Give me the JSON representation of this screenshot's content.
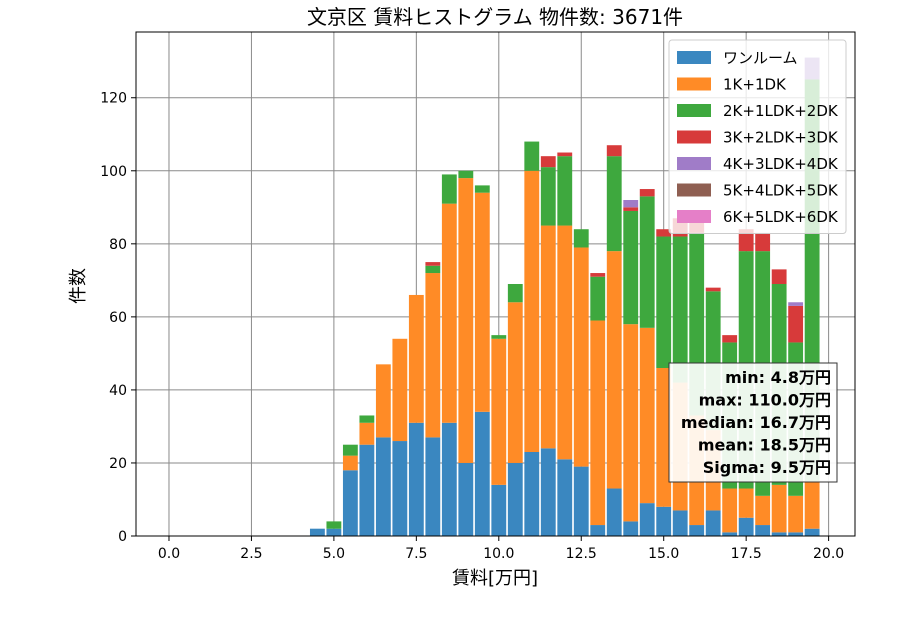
{
  "chart_data": {
    "type": "bar",
    "stacked": true,
    "title": "文京区 賃料ヒストグラム  物件数: 3671件",
    "xlabel": "賃料[万円]",
    "ylabel": "件数",
    "xlim": [
      -1,
      20.8
    ],
    "ylim": [
      0,
      138
    ],
    "bin_width": 0.5,
    "x": [
      4.5,
      5.0,
      5.5,
      6.0,
      6.5,
      7.0,
      7.5,
      8.0,
      8.5,
      9.0,
      9.5,
      10.0,
      10.5,
      11.0,
      11.5,
      12.0,
      12.5,
      13.0,
      13.5,
      14.0,
      14.5,
      15.0,
      15.5,
      16.0,
      16.5,
      17.0,
      17.5,
      18.0,
      18.5,
      19.0,
      19.5
    ],
    "xticks": [
      "0.0",
      "2.5",
      "5.0",
      "7.5",
      "10.0",
      "12.5",
      "15.0",
      "17.5",
      "20.0"
    ],
    "yticks": [
      "0",
      "20",
      "40",
      "60",
      "80",
      "100",
      "120"
    ],
    "grid": true,
    "legend_position": "top-right",
    "series": [
      {
        "name": "ワンルーム",
        "color": "#3a87c0",
        "values": [
          2,
          2,
          18,
          25,
          27,
          26,
          31,
          27,
          31,
          20,
          34,
          14,
          20,
          23,
          24,
          21,
          19,
          3,
          13,
          4,
          9,
          8,
          7,
          3,
          7,
          1,
          5,
          3,
          1,
          1,
          2
        ]
      },
      {
        "name": "1K+1DK",
        "color": "#ff8b26",
        "values": [
          0,
          0,
          4,
          6,
          20,
          28,
          35,
          45,
          60,
          78,
          60,
          40,
          44,
          77,
          61,
          64,
          60,
          56,
          65,
          54,
          48,
          38,
          35,
          30,
          22,
          12,
          8,
          8,
          13,
          10,
          13
        ]
      },
      {
        "name": "2K+1LDK+2DK",
        "color": "#3ea83e",
        "values": [
          0,
          2,
          3,
          2,
          0,
          0,
          0,
          2,
          8,
          2,
          2,
          1,
          5,
          8,
          16,
          19,
          5,
          12,
          26,
          31,
          36,
          36,
          40,
          50,
          38,
          40,
          65,
          67,
          55,
          42,
          110
        ]
      },
      {
        "name": "3K+2LDK+3DK",
        "color": "#d73a3a",
        "values": [
          0,
          0,
          0,
          0,
          0,
          0,
          0,
          1,
          0,
          0,
          0,
          0,
          0,
          0,
          3,
          1,
          0,
          1,
          3,
          1,
          2,
          2,
          5,
          3,
          1,
          2,
          6,
          5,
          4,
          10,
          0
        ]
      },
      {
        "name": "4K+3LDK+4DK",
        "color": "#a07cc8",
        "values": [
          0,
          0,
          0,
          0,
          0,
          0,
          0,
          0,
          0,
          0,
          0,
          0,
          0,
          0,
          0,
          0,
          0,
          0,
          0,
          2,
          0,
          0,
          0,
          0,
          0,
          0,
          0,
          0,
          0,
          1,
          6
        ]
      },
      {
        "name": "5K+4LDK+5DK",
        "color": "#8f5f52",
        "values": [
          0,
          0,
          0,
          0,
          0,
          0,
          0,
          0,
          0,
          0,
          0,
          0,
          0,
          0,
          0,
          0,
          0,
          0,
          0,
          0,
          0,
          0,
          0,
          0,
          0,
          0,
          0,
          0,
          0,
          0,
          0
        ]
      },
      {
        "name": "6K+5LDK+6DK",
        "color": "#e57fc8",
        "values": [
          0,
          0,
          0,
          0,
          0,
          0,
          0,
          0,
          0,
          0,
          0,
          0,
          0,
          0,
          0,
          0,
          0,
          0,
          0,
          0,
          0,
          0,
          0,
          0,
          0,
          0,
          0,
          0,
          0,
          0,
          0
        ]
      }
    ],
    "stats": [
      "min: 4.8万円",
      "max: 110.0万円",
      "median: 16.7万円",
      "mean: 18.5万円",
      "Sigma: 9.5万円"
    ]
  }
}
